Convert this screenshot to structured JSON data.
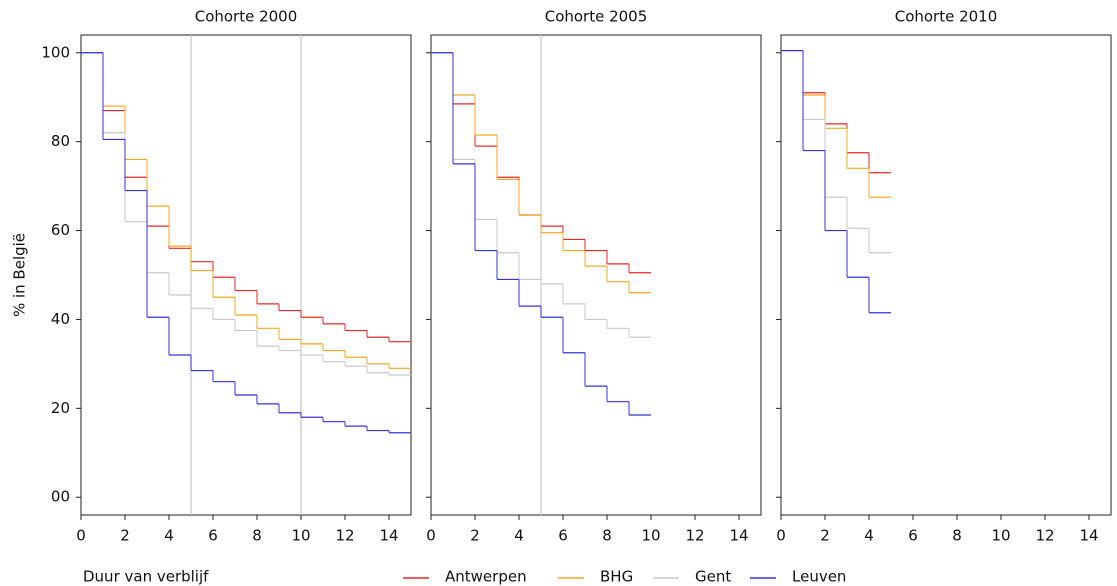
{
  "chart_data": [
    {
      "type": "step",
      "title": "Cohorte 2000",
      "ylabel": "% in België",
      "xlabel": "Duur van verblijf",
      "x": [
        0,
        1,
        2,
        3,
        4,
        5,
        6,
        7,
        8,
        9,
        10,
        11,
        12,
        13,
        14
      ],
      "series": [
        {
          "name": "Antwerpen",
          "color": "#e8262a",
          "values": [
            100,
            87,
            72,
            61,
            56,
            53,
            49.5,
            46.5,
            43.5,
            42,
            40.5,
            39,
            37.5,
            36,
            35
          ]
        },
        {
          "name": "BHG",
          "color": "#f5a623",
          "values": [
            100,
            88,
            76,
            65.5,
            56.5,
            51,
            45,
            41,
            38,
            35.5,
            34.5,
            33,
            31.5,
            30,
            29
          ]
        },
        {
          "name": "Gent",
          "color": "#c8c8c8",
          "values": [
            100,
            82,
            62,
            50.5,
            45.5,
            42.5,
            40,
            37.5,
            34,
            33,
            32,
            30.5,
            29.5,
            28,
            27.5
          ]
        },
        {
          "name": "Leuven",
          "color": "#3333dd",
          "values": [
            100,
            80.5,
            69,
            40.5,
            32,
            28.5,
            26,
            23,
            21,
            19,
            18,
            17,
            16,
            15,
            14.5
          ]
        }
      ],
      "vlines": [
        5,
        10
      ],
      "xlim": [
        0,
        15
      ],
      "xticks": [
        0,
        2,
        4,
        6,
        8,
        10,
        12,
        14
      ],
      "ylim": [
        -4,
        104
      ],
      "yticks": [
        {
          "value": 0,
          "label": "00"
        },
        20,
        40,
        60,
        80,
        100
      ]
    },
    {
      "type": "step",
      "title": "Cohorte 2005",
      "x": [
        0,
        1,
        2,
        3,
        4,
        5,
        6,
        7,
        8,
        9
      ],
      "series": [
        {
          "name": "Antwerpen",
          "color": "#e8262a",
          "values": [
            100,
            88.5,
            79,
            72,
            63.5,
            61,
            58,
            55.5,
            52.5,
            50.5
          ]
        },
        {
          "name": "BHG",
          "color": "#f5a623",
          "values": [
            100,
            90.5,
            81.5,
            71.5,
            63.5,
            59.5,
            55.5,
            52,
            48.5,
            46
          ]
        },
        {
          "name": "Gent",
          "color": "#c8c8c8",
          "values": [
            100,
            76,
            62.5,
            55,
            49,
            48,
            43.5,
            40,
            38,
            36
          ]
        },
        {
          "name": "Leuven",
          "color": "#3333dd",
          "values": [
            100,
            75,
            55.5,
            49,
            43,
            40.5,
            32.5,
            25,
            21.5,
            18.5
          ]
        }
      ],
      "vlines": [
        5
      ],
      "xlim": [
        0,
        15
      ],
      "xticks": [
        0,
        2,
        4,
        6,
        8,
        10,
        12,
        14
      ],
      "ylim": [
        -4,
        104
      ],
      "yticks": [
        0,
        20,
        40,
        60,
        80,
        100
      ]
    },
    {
      "type": "step",
      "title": "Cohorte 2010",
      "x": [
        0,
        1,
        2,
        3,
        4
      ],
      "series": [
        {
          "name": "Antwerpen",
          "color": "#e8262a",
          "values": [
            100.5,
            91,
            84,
            77.5,
            73
          ]
        },
        {
          "name": "BHG",
          "color": "#f5a623",
          "values": [
            100.5,
            90.5,
            83,
            74,
            67.5
          ]
        },
        {
          "name": "Gent",
          "color": "#c8c8c8",
          "values": [
            100.5,
            85,
            67.5,
            60.5,
            55
          ]
        },
        {
          "name": "Leuven",
          "color": "#3333dd",
          "values": [
            100.5,
            78,
            60,
            49.5,
            41.5
          ]
        }
      ],
      "vlines": [],
      "xlim": [
        0,
        15
      ],
      "xticks": [
        0,
        2,
        4,
        6,
        8,
        10,
        12,
        14
      ],
      "ylim": [
        -4,
        104
      ],
      "yticks": [
        0,
        20,
        40,
        60,
        80,
        100
      ]
    }
  ]
}
